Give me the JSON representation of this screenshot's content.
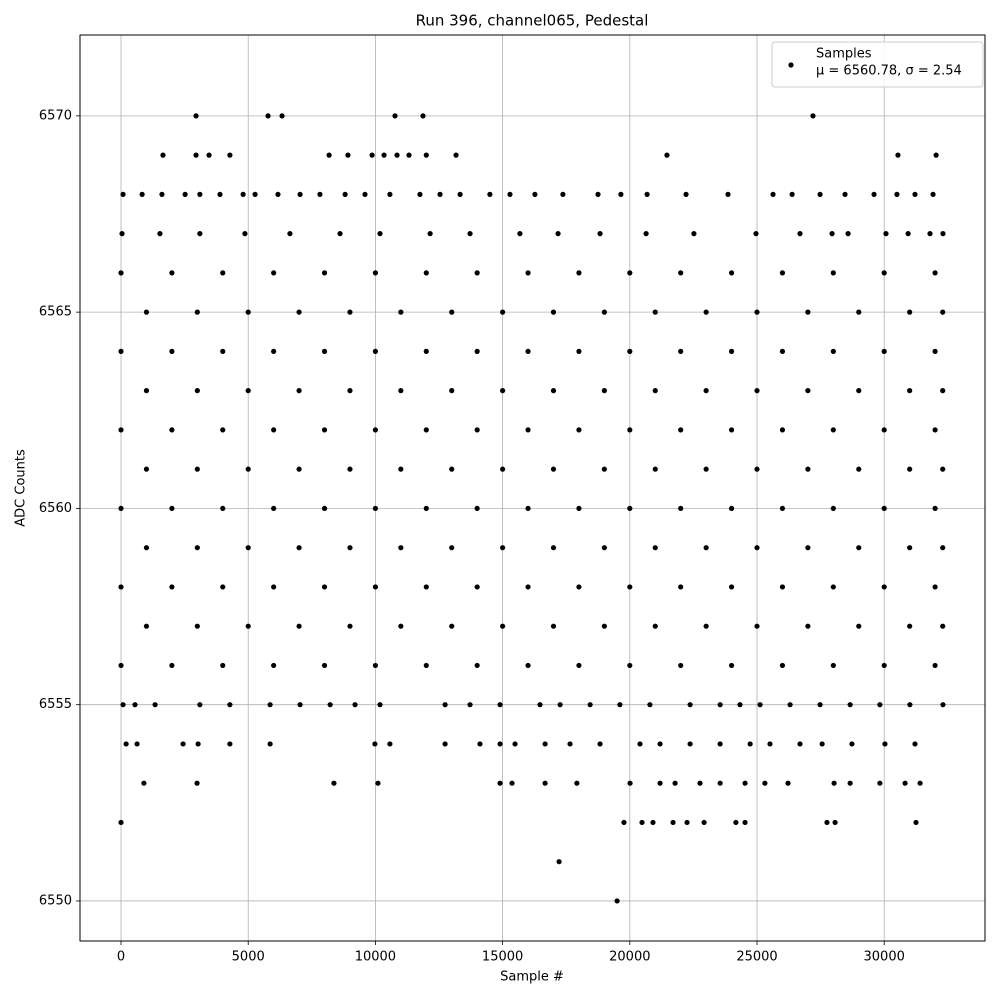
{
  "chart_data": {
    "type": "scatter",
    "title": "Run 396, channel065, Pedestal",
    "xlabel": "Sample #",
    "ylabel": "ADC Counts",
    "xlim": [
      -1612,
      33962
    ],
    "ylim": [
      6548.98,
      6572.06
    ],
    "xticks": [
      0,
      5000,
      10000,
      15000,
      20000,
      25000,
      30000
    ],
    "yticks": [
      6550,
      6555,
      6560,
      6565,
      6570
    ],
    "grid": true,
    "legend": "upper right",
    "legend_note": "μ = 6560.78, σ = 2.54",
    "series": [
      {
        "name": "Samples",
        "color": "#000000",
        "x": [
          0,
          2000,
          4000,
          6000,
          8000,
          10000,
          12000,
          14000,
          16000,
          18000,
          20000,
          22000,
          24000,
          26000,
          28000,
          30000,
          32000,
          1000,
          3000,
          5000,
          7000,
          9000,
          11000,
          13000,
          15000,
          17000,
          19000,
          21000,
          23000,
          25000,
          27000,
          29000,
          31000,
          32300,
          0,
          2000,
          4000,
          6000,
          8000,
          10000,
          12000,
          14000,
          16000,
          18000,
          20000,
          22000,
          24000,
          26000,
          28000,
          30000,
          32000,
          1000,
          3000,
          5000,
          7000,
          9000,
          11000,
          13000,
          15000,
          17000,
          19000,
          21000,
          23000,
          25000,
          27000,
          29000,
          31000,
          32300,
          0,
          2000,
          4000,
          6000,
          8000,
          10000,
          12000,
          14000,
          16000,
          18000,
          20000,
          22000,
          24000,
          26000,
          28000,
          30000,
          32000,
          1000,
          3000,
          5000,
          7000,
          9000,
          11000,
          13000,
          15000,
          17000,
          19000,
          21000,
          23000,
          25000,
          27000,
          29000,
          31000,
          32300,
          0,
          2000,
          4000,
          6000,
          8000,
          10000,
          12000,
          14000,
          16000,
          18000,
          20000,
          22000,
          24000,
          26000,
          28000,
          30000,
          32000,
          1000,
          3000,
          5000,
          7000,
          9000,
          11000,
          13000,
          15000,
          17000,
          19000,
          21000,
          23000,
          25000,
          27000,
          29000,
          31000,
          32300,
          0,
          2000,
          4000,
          6000,
          8000,
          10000,
          12000,
          14000,
          16000,
          18000,
          20000,
          22000,
          24000,
          26000,
          28000,
          30000,
          32000,
          1000,
          3000,
          5000,
          7000,
          9000,
          11000,
          13000,
          15000,
          17000,
          19000,
          21000,
          23000,
          25000,
          27000,
          29000,
          31000,
          32300,
          0,
          2000,
          4000,
          6000,
          8000,
          10000,
          12000,
          14000,
          16000,
          18000,
          20000,
          22000,
          24000,
          26000,
          28000,
          30000,
          32000,
          2950,
          5780,
          6330,
          10770,
          11870,
          27200,
          1650,
          2950,
          3460,
          4280,
          8180,
          8920,
          9870,
          10340,
          10850,
          11320,
          12000,
          13170,
          21460,
          30540,
          32040,
          80,
          830,
          1610,
          2520,
          3100,
          3890,
          4800,
          5270,
          6170,
          7040,
          7820,
          8810,
          9590,
          10570,
          11750,
          12540,
          13330,
          14500,
          15290,
          16270,
          17370,
          18750,
          19650,
          20680,
          22210,
          23860,
          25630,
          26380,
          27480,
          28460,
          29600,
          30500,
          31210,
          31920,
          40,
          1530,
          3100,
          4870,
          6640,
          8610,
          10180,
          12150,
          13720,
          15680,
          17180,
          18830,
          20640,
          22520,
          24960,
          26690,
          27950,
          28580,
          30070,
          30940,
          31800,
          32310,
          80,
          550,
          1340,
          3100,
          4280,
          5860,
          7040,
          8220,
          9200,
          10180,
          12740,
          13720,
          14900,
          16470,
          17260,
          18440,
          19610,
          20790,
          22370,
          23550,
          24330,
          25120,
          26300,
          27480,
          28660,
          29830,
          31010,
          32310,
          200,
          630,
          2440,
          3030,
          4280,
          5860,
          9980,
          10570,
          12740,
          14110,
          14900,
          15490,
          16670,
          17650,
          18830,
          20400,
          21190,
          22370,
          23550,
          24730,
          25510,
          26690,
          27560,
          28730,
          30030,
          31210,
          900,
          2990,
          8370,
          10100,
          14900,
          15370,
          16670,
          17920,
          20010,
          21190,
          21780,
          22760,
          23550,
          24530,
          25310,
          26220,
          28030,
          28660,
          29830,
          30820,
          31410,
          0,
          19770,
          20480,
          20910,
          21700,
          22250,
          22920,
          24170,
          24530,
          27750,
          28070,
          31250,
          17220,
          19500
        ],
        "values": [
          6556,
          6556,
          6556,
          6556,
          6556,
          6556,
          6556,
          6556,
          6556,
          6556,
          6556,
          6556,
          6556,
          6556,
          6556,
          6556,
          6556,
          6557,
          6557,
          6557,
          6557,
          6557,
          6557,
          6557,
          6557,
          6557,
          6557,
          6557,
          6557,
          6557,
          6557,
          6557,
          6557,
          6557,
          6558,
          6558,
          6558,
          6558,
          6558,
          6558,
          6558,
          6558,
          6558,
          6558,
          6558,
          6558,
          6558,
          6558,
          6558,
          6558,
          6558,
          6559,
          6559,
          6559,
          6559,
          6559,
          6559,
          6559,
          6559,
          6559,
          6559,
          6559,
          6559,
          6559,
          6559,
          6559,
          6559,
          6559,
          6560,
          6560,
          6560,
          6560,
          6560,
          6560,
          6560,
          6560,
          6560,
          6560,
          6560,
          6560,
          6560,
          6560,
          6560,
          6560,
          6560,
          6561,
          6561,
          6561,
          6561,
          6561,
          6561,
          6561,
          6561,
          6561,
          6561,
          6561,
          6561,
          6561,
          6561,
          6561,
          6561,
          6561,
          6562,
          6562,
          6562,
          6562,
          6562,
          6562,
          6562,
          6562,
          6562,
          6562,
          6562,
          6562,
          6562,
          6562,
          6562,
          6562,
          6562,
          6563,
          6563,
          6563,
          6563,
          6563,
          6563,
          6563,
          6563,
          6563,
          6563,
          6563,
          6563,
          6563,
          6563,
          6563,
          6563,
          6563,
          6564,
          6564,
          6564,
          6564,
          6564,
          6564,
          6564,
          6564,
          6564,
          6564,
          6564,
          6564,
          6564,
          6564,
          6564,
          6564,
          6564,
          6565,
          6565,
          6565,
          6565,
          6565,
          6565,
          6565,
          6565,
          6565,
          6565,
          6565,
          6565,
          6565,
          6565,
          6565,
          6565,
          6565,
          6566,
          6566,
          6566,
          6566,
          6566,
          6566,
          6566,
          6566,
          6566,
          6566,
          6566,
          6566,
          6566,
          6566,
          6566,
          6566,
          6566,
          6570,
          6570,
          6570,
          6570,
          6570,
          6570,
          6569,
          6569,
          6569,
          6569,
          6569,
          6569,
          6569,
          6569,
          6569,
          6569,
          6569,
          6569,
          6569,
          6569,
          6569,
          6568,
          6568,
          6568,
          6568,
          6568,
          6568,
          6568,
          6568,
          6568,
          6568,
          6568,
          6568,
          6568,
          6568,
          6568,
          6568,
          6568,
          6568,
          6568,
          6568,
          6568,
          6568,
          6568,
          6568,
          6568,
          6568,
          6568,
          6568,
          6568,
          6568,
          6568,
          6568,
          6568,
          6568,
          6567,
          6567,
          6567,
          6567,
          6567,
          6567,
          6567,
          6567,
          6567,
          6567,
          6567,
          6567,
          6567,
          6567,
          6567,
          6567,
          6567,
          6567,
          6567,
          6567,
          6567,
          6567,
          6555,
          6555,
          6555,
          6555,
          6555,
          6555,
          6555,
          6555,
          6555,
          6555,
          6555,
          6555,
          6555,
          6555,
          6555,
          6555,
          6555,
          6555,
          6555,
          6555,
          6555,
          6555,
          6555,
          6555,
          6555,
          6555,
          6555,
          6555,
          6554,
          6554,
          6554,
          6554,
          6554,
          6554,
          6554,
          6554,
          6554,
          6554,
          6554,
          6554,
          6554,
          6554,
          6554,
          6554,
          6554,
          6554,
          6554,
          6554,
          6554,
          6554,
          6554,
          6554,
          6554,
          6554,
          6553,
          6553,
          6553,
          6553,
          6553,
          6553,
          6553,
          6553,
          6553,
          6553,
          6553,
          6553,
          6553,
          6553,
          6553,
          6553,
          6553,
          6553,
          6553,
          6553,
          6553,
          6552,
          6552,
          6552,
          6552,
          6552,
          6552,
          6552,
          6552,
          6552,
          6552,
          6552,
          6552,
          6551,
          6550
        ]
      }
    ]
  }
}
